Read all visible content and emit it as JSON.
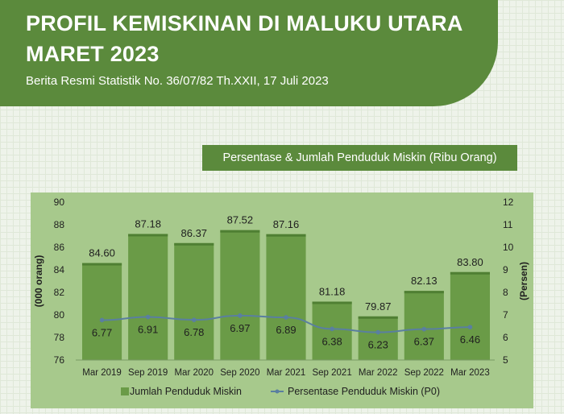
{
  "header": {
    "title_line1": "PROFIL KEMISKINAN DI MALUKU UTARA",
    "title_line2": "MARET 2023",
    "subtitle": "Berita Resmi Statistik No. 36/07/82 Th.XXII, 17 Juli 2023",
    "chart_title": "Persentase & Jumlah Penduduk Miskin (Ribu Orang)"
  },
  "colors": {
    "banner": "#5b8a3c",
    "plot_bg": "#a7c98c",
    "bar": "#6a9b47",
    "line": "#5a7fa0"
  },
  "chart_data": {
    "type": "bar",
    "categories": [
      "Mar 2019",
      "Sep 2019",
      "Mar 2020",
      "Sep 2020",
      "Mar 2021",
      "Sep 2021",
      "Mar 2022",
      "Sep 2022",
      "Mar 2023"
    ],
    "series": [
      {
        "name": "Jumlah Penduduk Miskin",
        "type": "bar",
        "axis": "left",
        "values": [
          84.6,
          87.18,
          86.37,
          87.52,
          87.16,
          81.18,
          79.87,
          82.13,
          83.8
        ],
        "labels": [
          "84.60",
          "87.18",
          "86.37",
          "87.52",
          "87.16",
          "81.18",
          "79.87",
          "82.13",
          "83.80"
        ]
      },
      {
        "name": "Persentase Penduduk Miskin (P0)",
        "type": "line",
        "axis": "right",
        "values": [
          6.77,
          6.91,
          6.78,
          6.97,
          6.89,
          6.38,
          6.23,
          6.37,
          6.46
        ],
        "labels": [
          "6.77",
          "6.91",
          "6.78",
          "6.97",
          "6.89",
          "6.38",
          "6.23",
          "6.37",
          "6.46"
        ]
      }
    ],
    "ylabel": "(000 orang)",
    "ylim": [
      76,
      90
    ],
    "yticks": [
      "76",
      "78",
      "80",
      "82",
      "84",
      "86",
      "88",
      "90"
    ],
    "y2label": "(Persen)",
    "y2lim": [
      5,
      12
    ],
    "y2ticks": [
      "5",
      "6",
      "7",
      "8",
      "9",
      "10",
      "11",
      "12"
    ],
    "legend": {
      "placement": "bottom",
      "bar_label": "Jumlah Penduduk Miskin",
      "line_label": "Persentase Penduduk Miskin (P0)"
    },
    "grid": false
  }
}
